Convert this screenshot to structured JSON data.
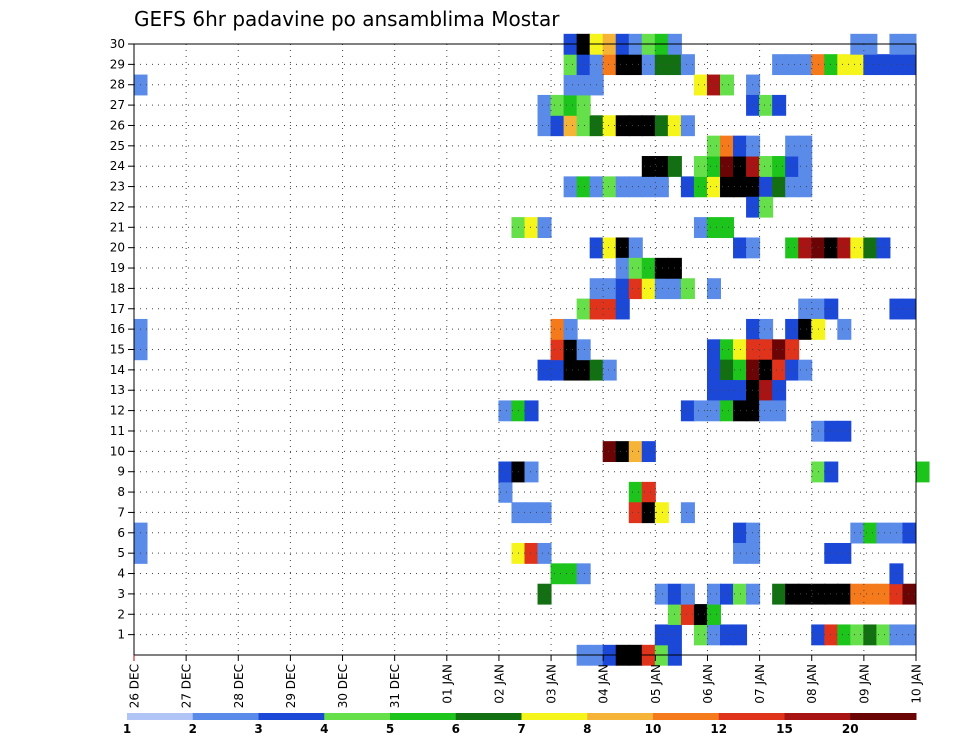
{
  "chart_data": {
    "type": "heatmap",
    "title": "GEFS 6hr padavine po ansamblima Mostar",
    "x_tick_labels": [
      "26 DEC",
      "27 DEC",
      "28 DEC",
      "29 DEC",
      "30 DEC",
      "31 DEC",
      "01 JAN",
      "02 JAN",
      "03 JAN",
      "04 JAN",
      "05 JAN",
      "06 JAN",
      "07 JAN",
      "08 JAN",
      "09 JAN",
      "10 JAN"
    ],
    "y_tick_labels": [
      "1",
      "2",
      "3",
      "4",
      "5",
      "6",
      "7",
      "8",
      "9",
      "10",
      "11",
      "12",
      "13",
      "14",
      "15",
      "16",
      "17",
      "18",
      "19",
      "20",
      "21",
      "22",
      "23",
      "24",
      "25",
      "26",
      "27",
      "28",
      "29",
      "30"
    ],
    "x_unit": "6-hour steps from 26 DEC 00Z",
    "y_range": [
      0,
      30
    ],
    "grid": true,
    "colorbar": {
      "labels": [
        "1",
        "2",
        "3",
        "4",
        "5",
        "6",
        "7",
        "8",
        "10",
        "12",
        "15",
        "20"
      ],
      "colors": [
        "#b0c4f5",
        "#5b8be8",
        "#1c48d8",
        "#66e04a",
        "#1cc41c",
        "#127012",
        "#f5f51c",
        "#f5b437",
        "#f57a1c",
        "#e0331c",
        "#a81414",
        "#6b0505"
      ]
    },
    "cells": [
      [
        0,
        28,
        1
      ],
      [
        0,
        16,
        1
      ],
      [
        0,
        15,
        1
      ],
      [
        0,
        6,
        1
      ],
      [
        0,
        5,
        1
      ],
      [
        28,
        8,
        1
      ],
      [
        28,
        9,
        1
      ],
      [
        29,
        7,
        1
      ],
      [
        29,
        21,
        3
      ],
      [
        30,
        21,
        6
      ],
      [
        31,
        21,
        1
      ],
      [
        28,
        12,
        1
      ],
      [
        29,
        12,
        4
      ],
      [
        30,
        12,
        2
      ],
      [
        28,
        9,
        2
      ],
      [
        29,
        9,
        13
      ],
      [
        30,
        9,
        1
      ],
      [
        29,
        5,
        6
      ],
      [
        30,
        5,
        9
      ],
      [
        31,
        5,
        1
      ],
      [
        30,
        7,
        1
      ],
      [
        31,
        7,
        1
      ],
      [
        31,
        3,
        5
      ],
      [
        32,
        4,
        4
      ],
      [
        33,
        4,
        4
      ],
      [
        34,
        4,
        1
      ],
      [
        31,
        14,
        2
      ],
      [
        32,
        14,
        2
      ],
      [
        33,
        14,
        15
      ],
      [
        34,
        14,
        15
      ],
      [
        35,
        14,
        5
      ],
      [
        36,
        14,
        1
      ],
      [
        32,
        15,
        9
      ],
      [
        33,
        15,
        13
      ],
      [
        34,
        15,
        1
      ],
      [
        32,
        16,
        8
      ],
      [
        33,
        16,
        1
      ],
      [
        34,
        17,
        3
      ],
      [
        35,
        17,
        9
      ],
      [
        36,
        17,
        9
      ],
      [
        37,
        17,
        2
      ],
      [
        31,
        26,
        1
      ],
      [
        32,
        26,
        2
      ],
      [
        33,
        26,
        7
      ],
      [
        34,
        26,
        3
      ],
      [
        35,
        26,
        5
      ],
      [
        36,
        26,
        6
      ],
      [
        37,
        26,
        15
      ],
      [
        38,
        26,
        12
      ],
      [
        39,
        26,
        15
      ],
      [
        40,
        26,
        5
      ],
      [
        41,
        26,
        6
      ],
      [
        42,
        26,
        1
      ],
      [
        31,
        27,
        1
      ],
      [
        32,
        27,
        3
      ],
      [
        33,
        27,
        4
      ],
      [
        34,
        27,
        3
      ],
      [
        33,
        28,
        1
      ],
      [
        34,
        28,
        1
      ],
      [
        35,
        28,
        1
      ],
      [
        33,
        29,
        3
      ],
      [
        34,
        29,
        2
      ],
      [
        35,
        29,
        1
      ],
      [
        36,
        29,
        8
      ],
      [
        37,
        29,
        15
      ],
      [
        38,
        29,
        12
      ],
      [
        39,
        29,
        1
      ],
      [
        40,
        29,
        5
      ],
      [
        41,
        29,
        5
      ],
      [
        42,
        29,
        1
      ],
      [
        33,
        30,
        2
      ],
      [
        34,
        30,
        13
      ],
      [
        35,
        30,
        6
      ],
      [
        36,
        30,
        7
      ],
      [
        37,
        30,
        2
      ],
      [
        38,
        30,
        1
      ],
      [
        39,
        30,
        3
      ],
      [
        40,
        30,
        4
      ],
      [
        41,
        30,
        1
      ],
      [
        33,
        23,
        1
      ],
      [
        34,
        23,
        4
      ],
      [
        35,
        23,
        1
      ],
      [
        36,
        23,
        3
      ],
      [
        37,
        23,
        1
      ],
      [
        38,
        23,
        1
      ],
      [
        39,
        23,
        1
      ],
      [
        40,
        23,
        1
      ],
      [
        42,
        23,
        2
      ],
      [
        43,
        23,
        4
      ],
      [
        44,
        23,
        6
      ],
      [
        45,
        23,
        15
      ],
      [
        46,
        23,
        14
      ],
      [
        47,
        23,
        13
      ],
      [
        48,
        23,
        2
      ],
      [
        49,
        23,
        5
      ],
      [
        50,
        23,
        1
      ],
      [
        51,
        23,
        1
      ],
      [
        35,
        20,
        2
      ],
      [
        36,
        20,
        6
      ],
      [
        37,
        20,
        15
      ],
      [
        38,
        20,
        1
      ],
      [
        35,
        18,
        1
      ],
      [
        36,
        18,
        1
      ],
      [
        37,
        18,
        2
      ],
      [
        38,
        18,
        9
      ],
      [
        39,
        18,
        6
      ],
      [
        40,
        18,
        1
      ],
      [
        41,
        18,
        1
      ],
      [
        42,
        18,
        3
      ],
      [
        44,
        18,
        1
      ],
      [
        37,
        19,
        1
      ],
      [
        38,
        19,
        3
      ],
      [
        39,
        19,
        4
      ],
      [
        40,
        19,
        15
      ],
      [
        41,
        19,
        13
      ],
      [
        36,
        10,
        11
      ],
      [
        37,
        10,
        14
      ],
      [
        38,
        10,
        7
      ],
      [
        39,
        10,
        2
      ],
      [
        38,
        8,
        4
      ],
      [
        39,
        8,
        9
      ],
      [
        38,
        7,
        9
      ],
      [
        39,
        7,
        15
      ],
      [
        40,
        7,
        6
      ],
      [
        42,
        7,
        1
      ],
      [
        34,
        0,
        1
      ],
      [
        35,
        0,
        1
      ],
      [
        36,
        0,
        2
      ],
      [
        37,
        0,
        15
      ],
      [
        38,
        0,
        15
      ],
      [
        39,
        0,
        9
      ],
      [
        40,
        0,
        3
      ],
      [
        41,
        0,
        2
      ],
      [
        40,
        1,
        2
      ],
      [
        41,
        1,
        2
      ],
      [
        43,
        1,
        3
      ],
      [
        44,
        1,
        1
      ],
      [
        45,
        1,
        2
      ],
      [
        46,
        1,
        2
      ],
      [
        41,
        2,
        3
      ],
      [
        42,
        2,
        9
      ],
      [
        43,
        2,
        14
      ],
      [
        44,
        2,
        4
      ],
      [
        40,
        3,
        1
      ],
      [
        41,
        3,
        2
      ],
      [
        42,
        3,
        1
      ],
      [
        44,
        3,
        1
      ],
      [
        45,
        3,
        2
      ],
      [
        46,
        3,
        3
      ],
      [
        47,
        3,
        1
      ],
      [
        49,
        3,
        5
      ],
      [
        50,
        3,
        15
      ],
      [
        51,
        3,
        15
      ],
      [
        52,
        3,
        14
      ],
      [
        53,
        3,
        14
      ],
      [
        54,
        3,
        14
      ],
      [
        55,
        3,
        8
      ],
      [
        56,
        3,
        8
      ],
      [
        57,
        3,
        8
      ],
      [
        58,
        3,
        9
      ],
      [
        59,
        3,
        11
      ],
      [
        39,
        24,
        15
      ],
      [
        40,
        24,
        15
      ],
      [
        41,
        24,
        5
      ],
      [
        43,
        24,
        3
      ],
      [
        44,
        24,
        4
      ],
      [
        45,
        24,
        11
      ],
      [
        46,
        24,
        15
      ],
      [
        47,
        24,
        10
      ],
      [
        48,
        24,
        3
      ],
      [
        49,
        24,
        4
      ],
      [
        50,
        24,
        2
      ],
      [
        51,
        24,
        1
      ],
      [
        44,
        25,
        3
      ],
      [
        45,
        25,
        8
      ],
      [
        46,
        25,
        2
      ],
      [
        47,
        25,
        1
      ],
      [
        50,
        25,
        1
      ],
      [
        51,
        25,
        1
      ],
      [
        43,
        28,
        6
      ],
      [
        44,
        28,
        10
      ],
      [
        45,
        28,
        3
      ],
      [
        47,
        28,
        1
      ],
      [
        43,
        21,
        1
      ],
      [
        44,
        21,
        4
      ],
      [
        45,
        21,
        4
      ],
      [
        47,
        22,
        2
      ],
      [
        48,
        22,
        3
      ],
      [
        47,
        27,
        2
      ],
      [
        48,
        27,
        3
      ],
      [
        49,
        27,
        2
      ],
      [
        49,
        29,
        1
      ],
      [
        50,
        29,
        1
      ],
      [
        51,
        29,
        1
      ],
      [
        52,
        29,
        8
      ],
      [
        53,
        29,
        4
      ],
      [
        54,
        29,
        6
      ],
      [
        55,
        29,
        6
      ],
      [
        56,
        29,
        2
      ],
      [
        57,
        29,
        2
      ],
      [
        58,
        29,
        2
      ],
      [
        59,
        29,
        2
      ],
      [
        55,
        30,
        1
      ],
      [
        56,
        30,
        1
      ],
      [
        58,
        30,
        1
      ],
      [
        59,
        30,
        1
      ],
      [
        46,
        20,
        2
      ],
      [
        47,
        20,
        1
      ],
      [
        50,
        20,
        4
      ],
      [
        51,
        20,
        10
      ],
      [
        52,
        20,
        11
      ],
      [
        53,
        20,
        12
      ],
      [
        54,
        20,
        10
      ],
      [
        55,
        20,
        6
      ],
      [
        56,
        20,
        5
      ],
      [
        57,
        20,
        2
      ],
      [
        51,
        17,
        1
      ],
      [
        52,
        17,
        1
      ],
      [
        53,
        17,
        2
      ],
      [
        58,
        17,
        2
      ],
      [
        59,
        17,
        2
      ],
      [
        47,
        16,
        2
      ],
      [
        48,
        16,
        1
      ],
      [
        50,
        16,
        2
      ],
      [
        51,
        16,
        13
      ],
      [
        52,
        16,
        6
      ],
      [
        54,
        16,
        1
      ],
      [
        44,
        15,
        2
      ],
      [
        45,
        15,
        4
      ],
      [
        46,
        15,
        6
      ],
      [
        47,
        15,
        9
      ],
      [
        48,
        15,
        9
      ],
      [
        49,
        15,
        11
      ],
      [
        50,
        15,
        9
      ],
      [
        44,
        14,
        2
      ],
      [
        45,
        14,
        5
      ],
      [
        46,
        14,
        4
      ],
      [
        47,
        14,
        11
      ],
      [
        48,
        14,
        15
      ],
      [
        49,
        14,
        9
      ],
      [
        50,
        14,
        2
      ],
      [
        51,
        14,
        1
      ],
      [
        44,
        13,
        2
      ],
      [
        45,
        13,
        2
      ],
      [
        46,
        13,
        2
      ],
      [
        47,
        13,
        13
      ],
      [
        48,
        13,
        10
      ],
      [
        49,
        13,
        2
      ],
      [
        42,
        12,
        2
      ],
      [
        43,
        12,
        1
      ],
      [
        44,
        12,
        1
      ],
      [
        45,
        12,
        4
      ],
      [
        46,
        12,
        12
      ],
      [
        47,
        12,
        14
      ],
      [
        48,
        12,
        1
      ],
      [
        49,
        12,
        1
      ],
      [
        52,
        11,
        1
      ],
      [
        53,
        11,
        2
      ],
      [
        54,
        11,
        2
      ],
      [
        52,
        9,
        3
      ],
      [
        53,
        9,
        2
      ],
      [
        60,
        9,
        4
      ],
      [
        46,
        6,
        2
      ],
      [
        47,
        6,
        1
      ],
      [
        55,
        6,
        1
      ],
      [
        56,
        6,
        4
      ],
      [
        57,
        6,
        1
      ],
      [
        58,
        6,
        1
      ],
      [
        59,
        6,
        2
      ],
      [
        46,
        5,
        1
      ],
      [
        47,
        5,
        1
      ],
      [
        53,
        5,
        2
      ],
      [
        54,
        5,
        2
      ],
      [
        58,
        4,
        2
      ],
      [
        52,
        1,
        2
      ],
      [
        53,
        1,
        9
      ],
      [
        54,
        1,
        4
      ],
      [
        55,
        1,
        3
      ],
      [
        56,
        1,
        5
      ],
      [
        57,
        1,
        3
      ],
      [
        58,
        1,
        1
      ],
      [
        59,
        1,
        1
      ]
    ]
  }
}
